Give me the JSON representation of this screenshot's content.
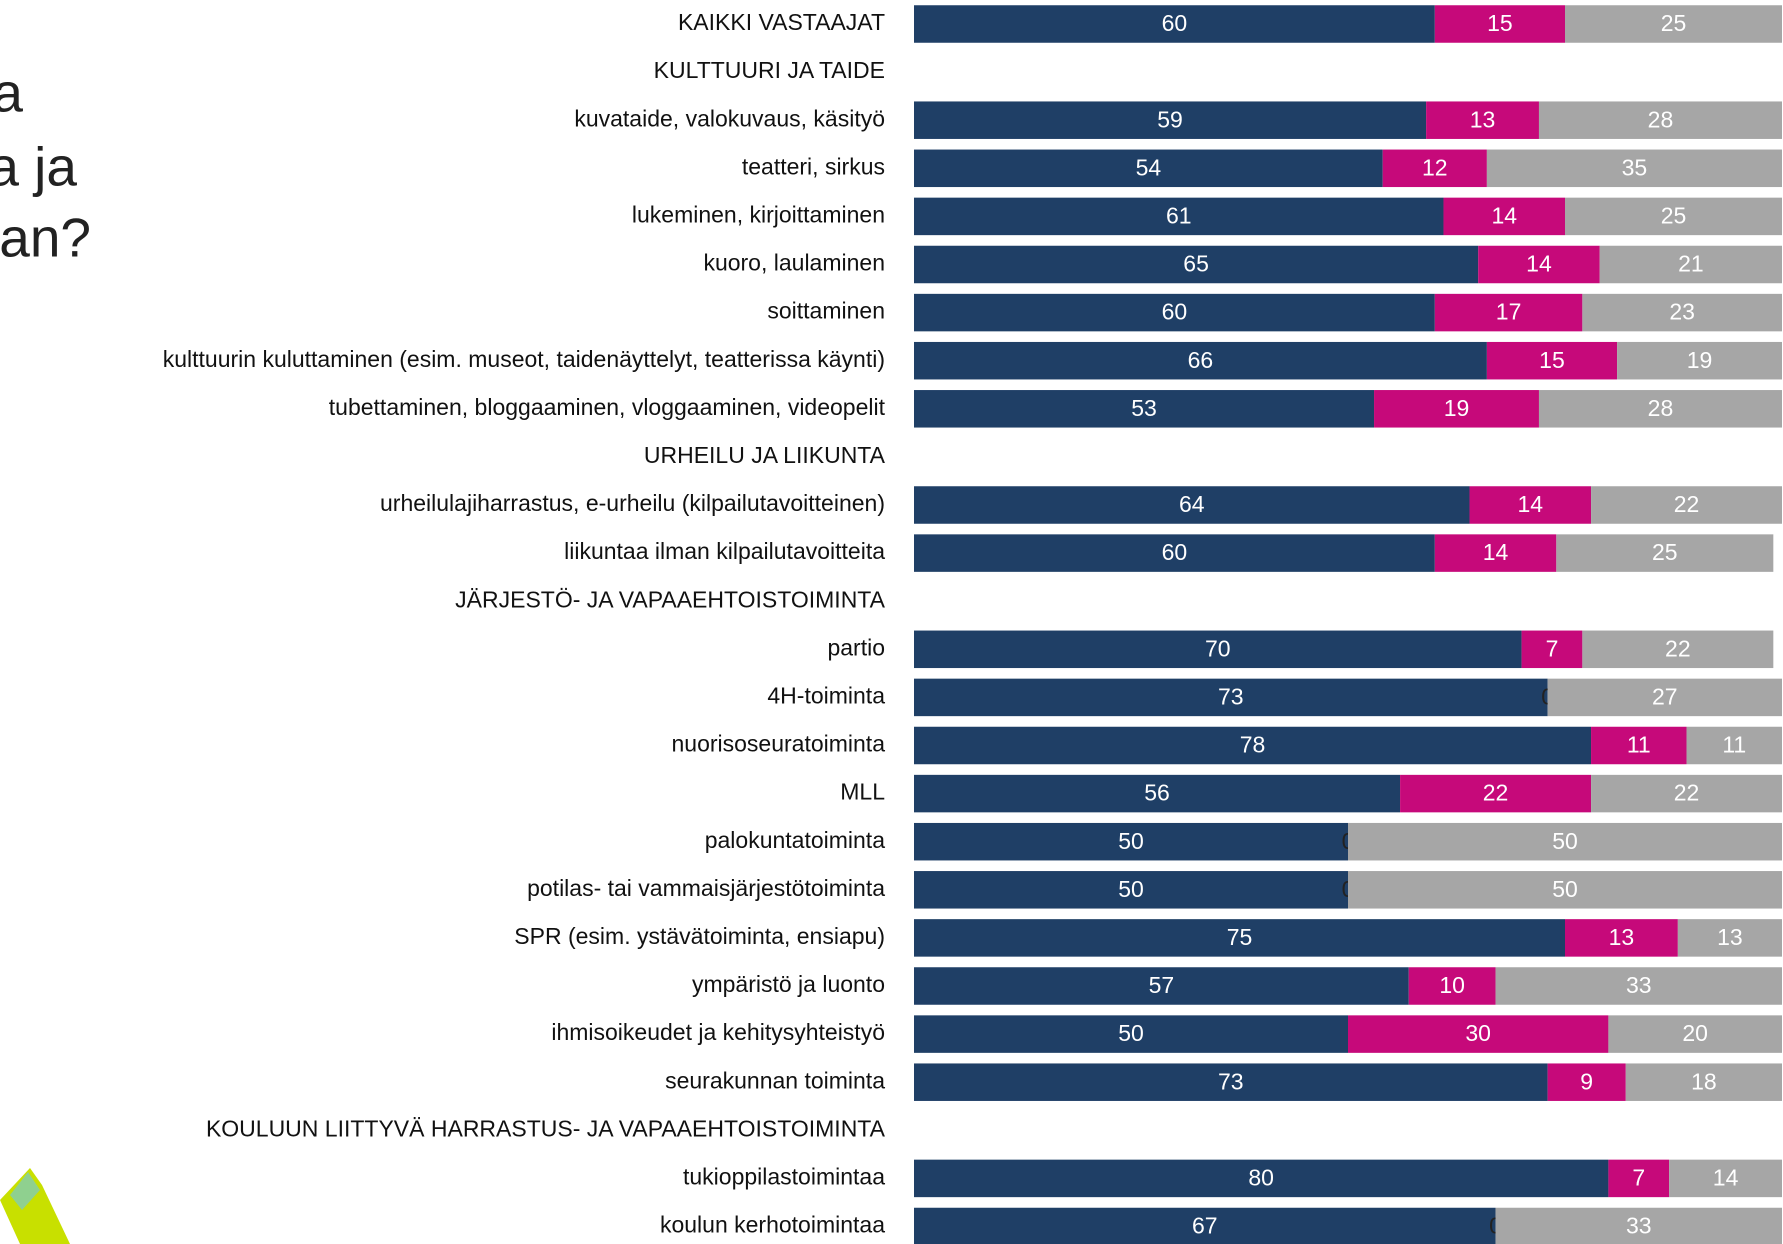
{
  "chart_data": {
    "type": "stacked_bar_horizontal",
    "title_fragments": [
      "a",
      "a ja",
      "an?"
    ],
    "categories": [
      "KAIKKI VASTAAJAT",
      "KULTTUURI JA TAIDE",
      "kuvataide, valokuvaus, käsityö",
      "teatteri, sirkus",
      "lukeminen, kirjoittaminen",
      "kuoro, laulaminen",
      "soittaminen",
      "kulttuurin kuluttaminen (esim. museot, taidenäyttelyt, teatterissa käynti)",
      "tubettaminen, bloggaaminen, vloggaaminen, videopelit",
      "URHEILU JA LIIKUNTA",
      "urheilulajiharrastus, e-urheilu (kilpailutavoitteinen)",
      "liikuntaa ilman kilpailutavoitteita",
      "JÄRJESTÖ- JA VAPAAEHTOISTOIMINTA",
      "partio",
      "4H-toiminta",
      "nuorisoseuratoiminta",
      "MLL",
      "palokuntatoiminta",
      "potilas- tai vammaisjärjestötoiminta",
      "SPR (esim. ystävätoiminta, ensiapu)",
      "ympäristö ja luonto",
      "ihmisoikeudet ja kehitysyhteistyö",
      "seurakunnan toiminta",
      "KOULUUN LIITTYVÄ HARRASTUS- JA VAPAAEHTOISTOIMINTA",
      "tukioppilastoimintaa",
      "koulun kerhotoimintaa"
    ],
    "series": [
      {
        "color": "#1f3f66",
        "values": [
          60,
          null,
          59,
          54,
          61,
          65,
          60,
          66,
          53,
          null,
          64,
          60,
          null,
          70,
          73,
          78,
          56,
          50,
          50,
          75,
          57,
          50,
          73,
          null,
          80,
          67
        ]
      },
      {
        "color": "#c6097a",
        "values": [
          15,
          null,
          13,
          12,
          14,
          14,
          17,
          15,
          19,
          null,
          14,
          14,
          null,
          7,
          0,
          11,
          22,
          0,
          0,
          13,
          10,
          30,
          9,
          null,
          7,
          0
        ]
      },
      {
        "color": "#a6a6a6",
        "values": [
          25,
          null,
          28,
          35,
          25,
          21,
          23,
          19,
          28,
          null,
          22,
          25,
          null,
          22,
          27,
          11,
          22,
          50,
          50,
          13,
          33,
          20,
          18,
          null,
          14,
          33
        ]
      }
    ],
    "xlim": [
      0,
      100
    ]
  }
}
